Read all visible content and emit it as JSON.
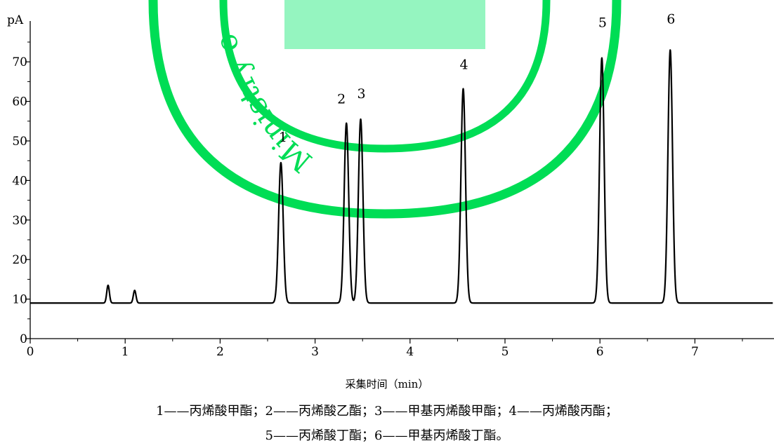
{
  "chart_data": {
    "type": "line",
    "title": "",
    "xlabel": "采集时间（min）",
    "ylabel": "pA",
    "xlim": [
      0,
      7.8
    ],
    "ylim": [
      0,
      80
    ],
    "x_ticks": [
      "0",
      "1",
      "2",
      "3",
      "4",
      "5",
      "6",
      "7"
    ],
    "y_ticks": [
      "0",
      "10",
      "20",
      "30",
      "40",
      "50",
      "60",
      "70"
    ],
    "baseline": 9,
    "grid": false,
    "series": [
      {
        "color": "#000000",
        "peaks": [
          {
            "time": 0.82,
            "height": 13.5,
            "label": ""
          },
          {
            "time": 1.1,
            "height": 12.2,
            "label": ""
          },
          {
            "time": 2.64,
            "height": 44.5,
            "label": "1"
          },
          {
            "time": 3.33,
            "height": 54.5,
            "label": "2"
          },
          {
            "time": 3.48,
            "height": 55.5,
            "label": "3"
          },
          {
            "time": 4.56,
            "height": 63.2,
            "label": "4"
          },
          {
            "time": 6.02,
            "height": 71.0,
            "label": "5"
          },
          {
            "time": 6.74,
            "height": 73.0,
            "label": "6"
          }
        ]
      }
    ]
  },
  "watermark": {
    "text": "Ministry o",
    "color": "#00dd55",
    "box_color": "#95f5c0"
  },
  "legend": {
    "line1": "1——丙烯酸甲酯；2——丙烯酸乙酯；3——甲基丙烯酸甲酯；4——丙烯酸丙酯；",
    "line2": "5——丙烯酸丁酯；6——甲基丙烯酸丁酯。"
  }
}
